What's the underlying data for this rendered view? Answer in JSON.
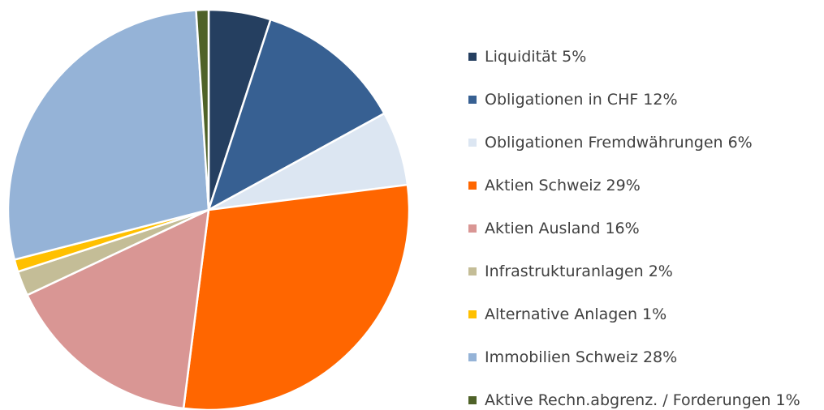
{
  "chart_data": {
    "type": "pie",
    "categories": [
      "Liquidität",
      "Obligationen in CHF",
      "Obligationen Fremdwährungen",
      "Aktien Schweiz",
      "Aktien Ausland",
      "Infrastrukturanlagen",
      "Alternative Anlagen",
      "Immobilien Schweiz",
      "Aktive Rechn.abgrenz. / Forderungen"
    ],
    "values": [
      5,
      12,
      6,
      29,
      16,
      2,
      1,
      28,
      1
    ],
    "value_labels": [
      "5%",
      "12%",
      "6%",
      "29%",
      "16%",
      "2%",
      "1%",
      "28%",
      "1%"
    ],
    "colors": [
      "#253f60",
      "#376092",
      "#dce6f2",
      "#ff6600",
      "#d99694",
      "#c4bd97",
      "#ffc000",
      "#95b3d7",
      "#4f6228"
    ],
    "legend": "right"
  }
}
